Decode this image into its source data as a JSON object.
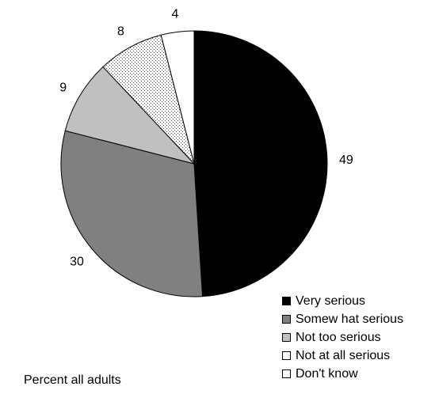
{
  "chart_data": {
    "type": "pie",
    "title": "",
    "slices": [
      {
        "label": "Very serious",
        "value": 49,
        "color": "#000000",
        "pattern": "solid"
      },
      {
        "label": "Somew hat serious",
        "value": 30,
        "color": "#808080",
        "pattern": "solid"
      },
      {
        "label": "Not too serious",
        "value": 9,
        "color": "#c0c0c0",
        "pattern": "solid"
      },
      {
        "label": "Not at all serious",
        "value": 8,
        "color": "#ffffff",
        "pattern": "dots"
      },
      {
        "label": "Don't know",
        "value": 4,
        "color": "#ffffff",
        "pattern": "solid"
      }
    ],
    "legend_position": "bottom-right",
    "start": "12 o'clock, clockwise",
    "note": "Percent all adults"
  }
}
